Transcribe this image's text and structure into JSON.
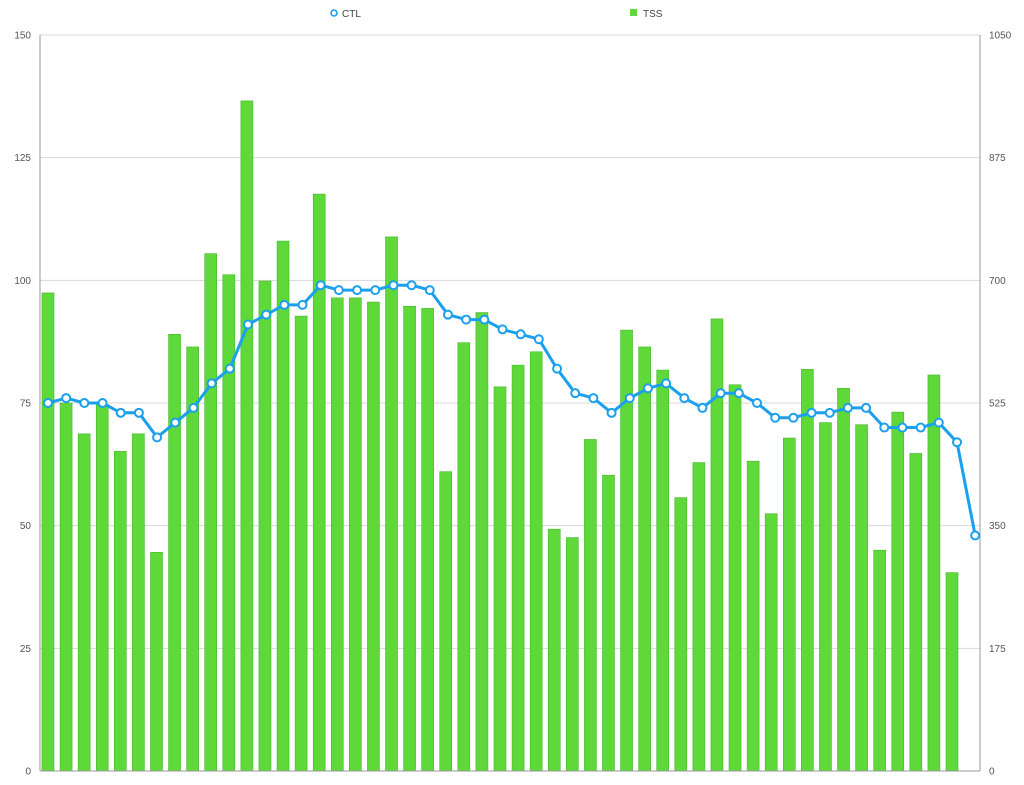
{
  "chart_data": {
    "type": "bar",
    "grid": true,
    "legend_position": "top-center",
    "legend": [
      {
        "label": "CTL",
        "symbol": "line-marker"
      },
      {
        "label": "TSS",
        "symbol": "bar"
      }
    ],
    "colors": {
      "ctl": "#1aa0ec",
      "tss": "#5fd83a",
      "tss_edge": "#45b82a",
      "grid": "#d7d7d7",
      "axis": "#9a9a9a"
    },
    "y_left": {
      "label": "",
      "range": [
        0,
        150
      ],
      "ticks": [
        "0",
        "25",
        "50",
        "75",
        "100",
        "125",
        "150"
      ]
    },
    "y_right": {
      "label": "",
      "range": [
        0,
        1050
      ],
      "ticks": [
        "0",
        "175",
        "350",
        "525",
        "700",
        "875",
        "1050"
      ]
    },
    "series": [
      {
        "name": "TSS",
        "axis": "right",
        "type": "bar",
        "values": [
          682,
          525,
          481,
          523,
          456,
          481,
          312,
          623,
          605,
          738,
          708,
          956,
          699,
          756,
          649,
          823,
          675,
          675,
          669,
          762,
          663,
          660,
          427,
          611,
          654,
          548,
          579,
          598,
          345,
          333,
          473,
          422,
          629,
          605,
          572,
          390,
          440,
          645,
          551,
          442,
          367,
          475,
          573,
          497,
          546,
          494,
          315,
          512,
          453,
          565,
          283
        ]
      },
      {
        "name": "CTL",
        "axis": "left",
        "type": "line",
        "values": [
          75,
          76,
          75,
          75,
          73,
          73,
          68,
          71,
          74,
          79,
          82,
          91,
          93,
          95,
          95,
          99,
          98,
          98,
          98,
          99,
          99,
          98,
          93,
          92,
          92,
          90,
          89,
          88,
          82,
          77,
          76,
          73,
          76,
          78,
          79,
          76,
          74,
          77,
          77,
          75,
          72,
          72,
          73,
          73,
          74,
          74,
          70,
          70,
          70,
          71,
          67,
          48
        ]
      }
    ]
  }
}
